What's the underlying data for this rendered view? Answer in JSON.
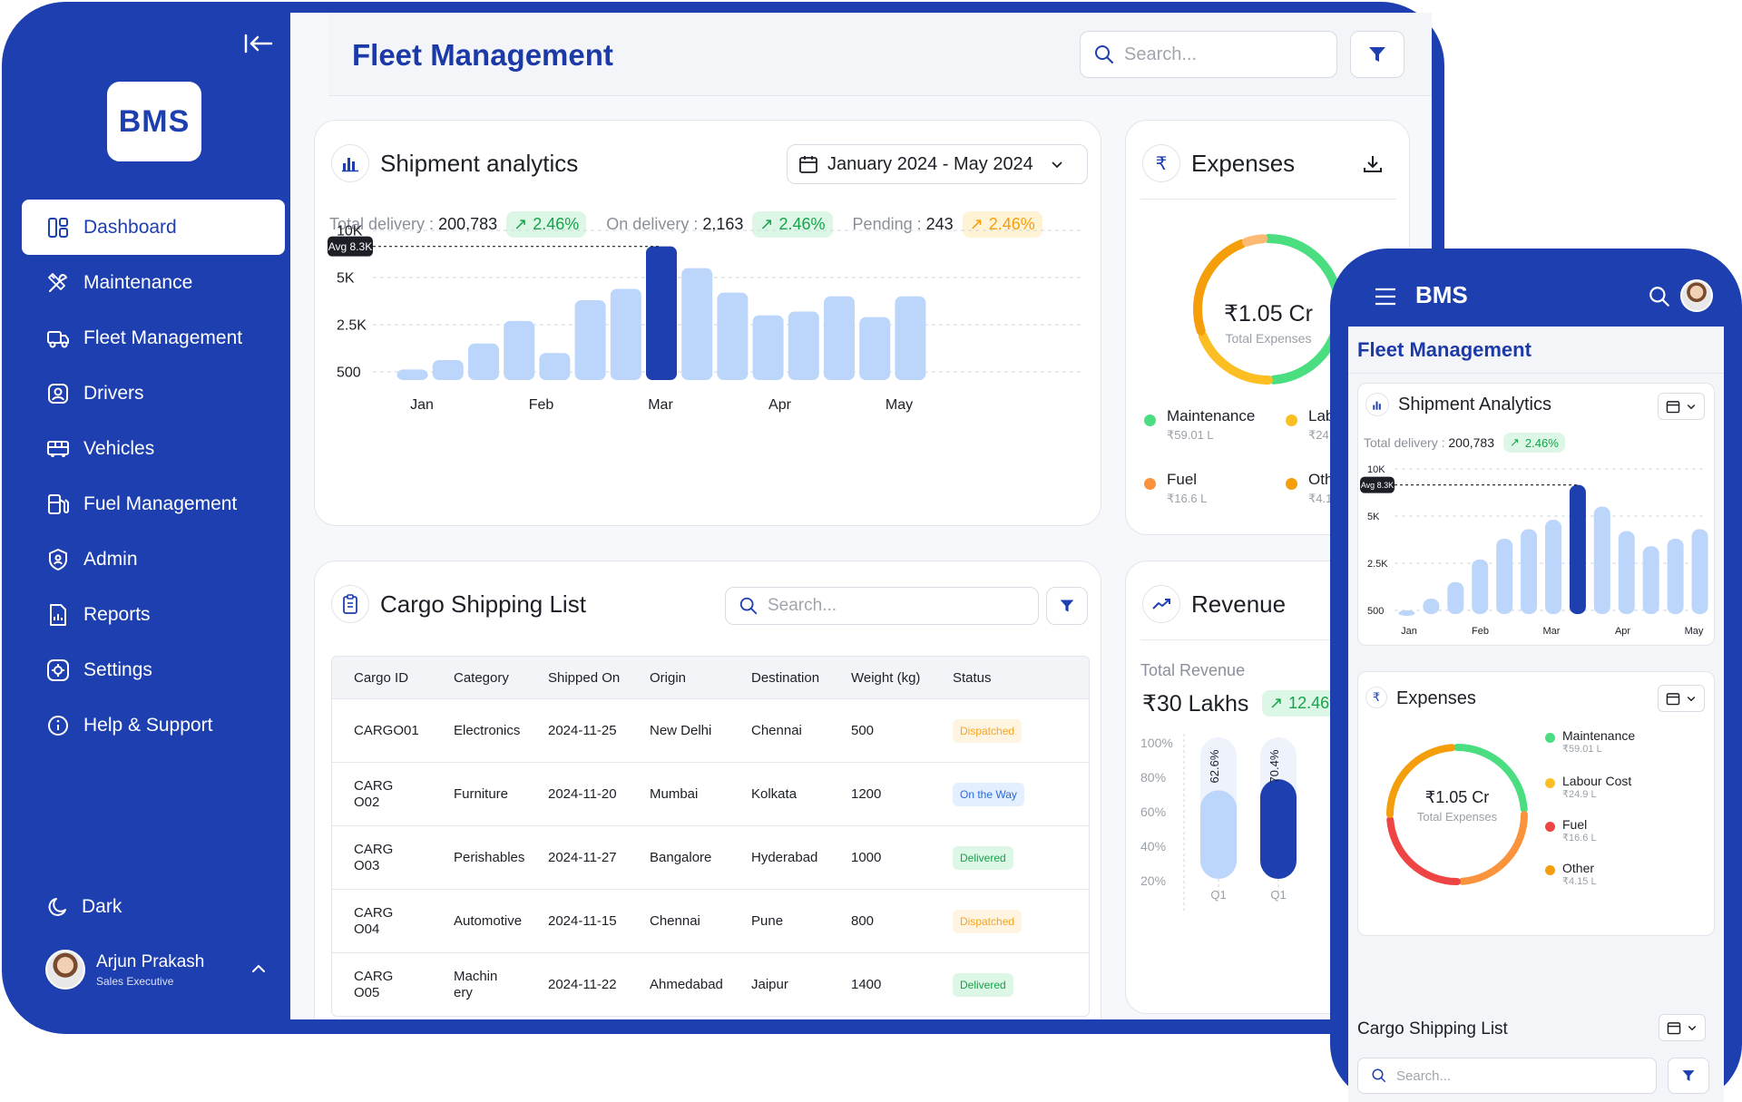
{
  "sidebar": {
    "logo": "BMS",
    "items": [
      {
        "label": "Dashboard",
        "icon": "dashboard-icon"
      },
      {
        "label": "Maintenance",
        "icon": "tools-icon"
      },
      {
        "label": "Fleet Management",
        "icon": "truck-icon"
      },
      {
        "label": "Drivers",
        "icon": "driver-icon"
      },
      {
        "label": "Vehicles",
        "icon": "bus-icon"
      },
      {
        "label": "Fuel Management",
        "icon": "fuel-icon"
      },
      {
        "label": "Admin",
        "icon": "shield-icon"
      },
      {
        "label": "Reports",
        "icon": "report-icon"
      },
      {
        "label": "Settings",
        "icon": "settings-icon"
      },
      {
        "label": "Help & Support",
        "icon": "info-icon"
      }
    ],
    "dark_label": "Dark",
    "user": {
      "name": "Arjun Prakash",
      "role": "Sales Executive"
    }
  },
  "header": {
    "title": "Fleet Management",
    "search_placeholder": "Search..."
  },
  "shipment": {
    "title": "Shipment analytics",
    "date_range": "January 2024 - May 2024",
    "total_label": "Total delivery :",
    "total_value": "200,783",
    "total_change": "2.46%",
    "on_label": "On delivery :",
    "on_value": "2,163",
    "on_change": "2.46%",
    "pending_label": "Pending :",
    "pending_value": "243",
    "pending_change": "2.46%",
    "avg_label": "Avg 8.3K"
  },
  "chart_data": {
    "type": "bar",
    "y_ticks": [
      "10K",
      "5K",
      "2.5K",
      "500"
    ],
    "x_ticks": [
      "Jan",
      "Feb",
      "Mar",
      "Apr",
      "May"
    ],
    "values": [
      600,
      1000,
      1700,
      2700,
      1300,
      3800,
      4400,
      8300,
      6000,
      4200,
      3000,
      3200,
      4000,
      2900,
      4000
    ],
    "highlight_index": 7,
    "average": 8300,
    "colors": {
      "bar": "#bcd6fb",
      "highlight": "#1d3fb0"
    }
  },
  "expenses": {
    "title": "Expenses",
    "total": "₹1.05 Cr",
    "total_label": "Total Expenses",
    "items": [
      {
        "name": "Maintenance",
        "value": "₹59.01 L",
        "color": "#4ade80"
      },
      {
        "name": "Labour Cost",
        "value": "₹24.9 L",
        "color": "#fbbf24"
      },
      {
        "name": "Fuel",
        "value": "₹16.6 L",
        "color": "#fb923c"
      },
      {
        "name": "Other",
        "value": "₹4.15 L",
        "color": "#f59e0b"
      }
    ]
  },
  "cargo": {
    "title": "Cargo Shipping List",
    "search_placeholder": "Search...",
    "columns": [
      "Cargo ID",
      "Category",
      "Shipped On",
      "Origin",
      "Destination",
      "Weight (kg)",
      "Status"
    ],
    "rows": [
      {
        "id": "CARGO01",
        "category": "Electronics",
        "shipped": "2024-11-25",
        "origin": "New Delhi",
        "dest": "Chennai",
        "weight": "500",
        "status": "Dispatched",
        "status_class": "b-dispatched"
      },
      {
        "id": "CARG O02",
        "category": "Furniture",
        "shipped": "2024-11-20",
        "origin": "Mumbai",
        "dest": "Kolkata",
        "weight": "1200",
        "status": "On the Way",
        "status_class": "b-ontheway"
      },
      {
        "id": "CARG O03",
        "category": "Perishables",
        "shipped": "2024-11-27",
        "origin": "Bangalore",
        "dest": "Hyderabad",
        "weight": "1000",
        "status": "Delivered",
        "status_class": "b-delivered"
      },
      {
        "id": "CARG O04",
        "category": "Automotive",
        "shipped": "2024-11-15",
        "origin": "Chennai",
        "dest": "Pune",
        "weight": "800",
        "status": "Dispatched",
        "status_class": "b-dispatched"
      },
      {
        "id": "CARG O05",
        "category": "Machin ery",
        "shipped": "2024-11-22",
        "origin": "Ahmedabad",
        "dest": "Jaipur",
        "weight": "1400",
        "status": "Delivered",
        "status_class": "b-delivered"
      }
    ]
  },
  "revenue": {
    "title": "Revenue",
    "total_label": "Total Revenue",
    "total_value": "₹30 Lakhs",
    "change": "12.46%",
    "y_ticks": [
      "100%",
      "80%",
      "60%",
      "40%",
      "20%"
    ],
    "bars": [
      {
        "label": "Q1",
        "value": 62.6,
        "text": "62.6%"
      },
      {
        "label": "Q1",
        "value": 70.4,
        "text": "70.4%"
      }
    ]
  },
  "phone": {
    "app_name": "BMS",
    "page_title": "Fleet Management",
    "shipment_title": "Shipment Analytics",
    "total_label": "Total delivery :",
    "total_value": "200,783",
    "total_change": "2.46%",
    "avg_label": "Avg 8.3K",
    "y_ticks": [
      "10K",
      "5K",
      "2.5K",
      "500"
    ],
    "x_ticks": [
      "Jan",
      "Feb",
      "Mar",
      "Apr",
      "May"
    ],
    "values": [
      500,
      1000,
      1700,
      2700,
      3800,
      4300,
      4800,
      8300,
      6000,
      4200,
      3400,
      3800,
      4300
    ],
    "highlight_index": 7,
    "expenses_title": "Expenses",
    "cargo_title": "Cargo Shipping List",
    "search_placeholder": "Search..."
  }
}
